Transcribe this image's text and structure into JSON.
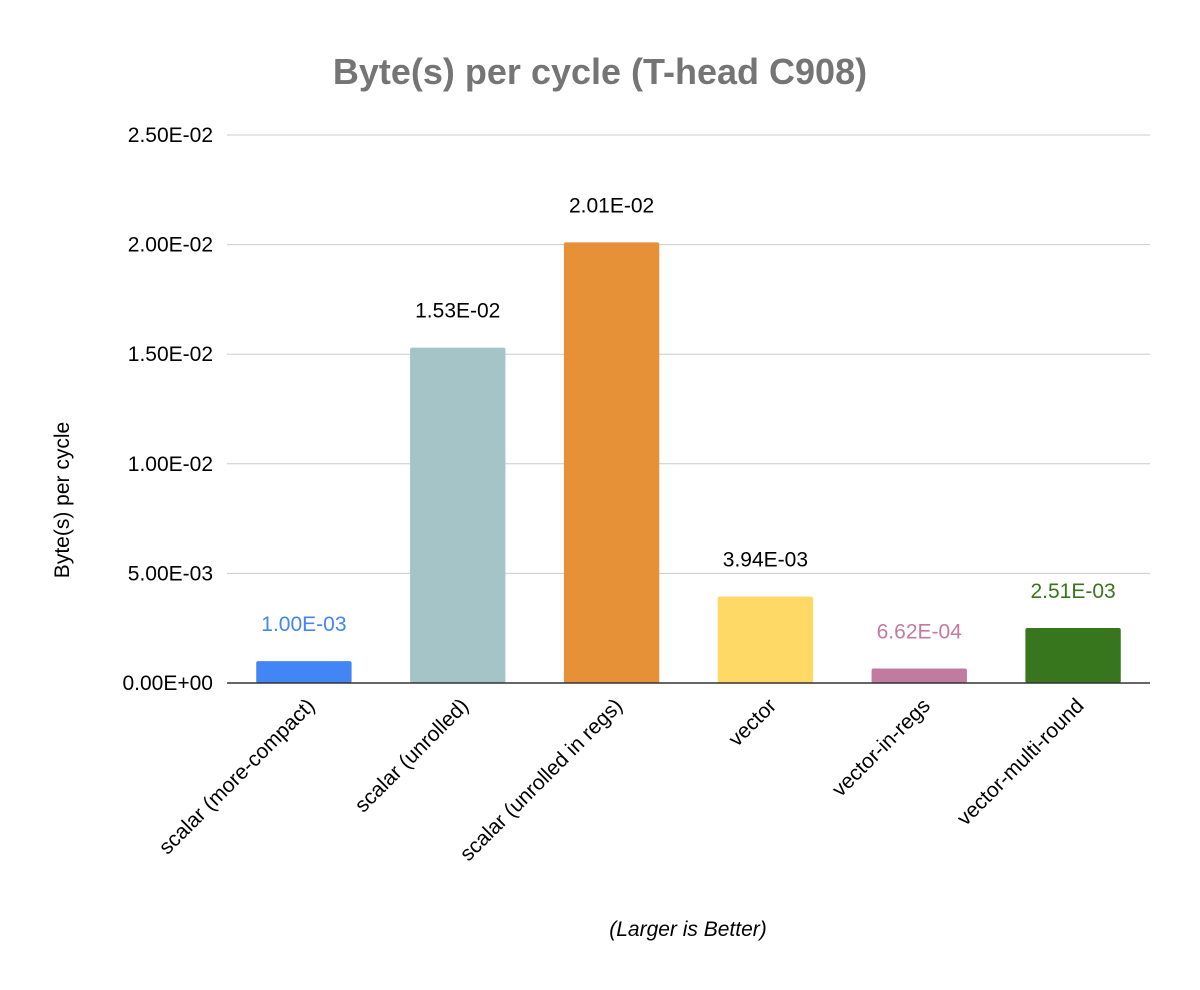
{
  "chart_data": {
    "type": "bar",
    "title": "Byte(s) per cycle (T-head C908)",
    "xlabel": "(Larger is Better)",
    "ylabel": "Byte(s) per cycle",
    "ylim": [
      0,
      0.025
    ],
    "yticks": [
      0,
      0.005,
      0.01,
      0.015,
      0.02,
      0.025
    ],
    "ytick_labels": [
      "0.00E+00",
      "5.00E-03",
      "1.00E-02",
      "1.50E-02",
      "2.00E-02",
      "2.50E-02"
    ],
    "grid": true,
    "categories": [
      "scalar (more-compact)",
      "scalar (unrolled)",
      "scalar (unrolled in regs)",
      "vector",
      "vector-in-regs",
      "vector-multi-round"
    ],
    "values": [
      0.001,
      0.0153,
      0.0201,
      0.00394,
      0.000662,
      0.00251
    ],
    "data_labels": [
      "1.00E-03",
      "1.53E-02",
      "2.01E-02",
      "3.94E-03",
      "6.62E-04",
      "2.51E-03"
    ],
    "bar_colors": [
      "#4285f4",
      "#a5c4c7",
      "#e69138",
      "#ffd966",
      "#c27ba0",
      "#38761d"
    ],
    "label_colors": [
      "#4285f4",
      "#000000",
      "#000000",
      "#000000",
      "#c27ba0",
      "#38761d"
    ]
  }
}
